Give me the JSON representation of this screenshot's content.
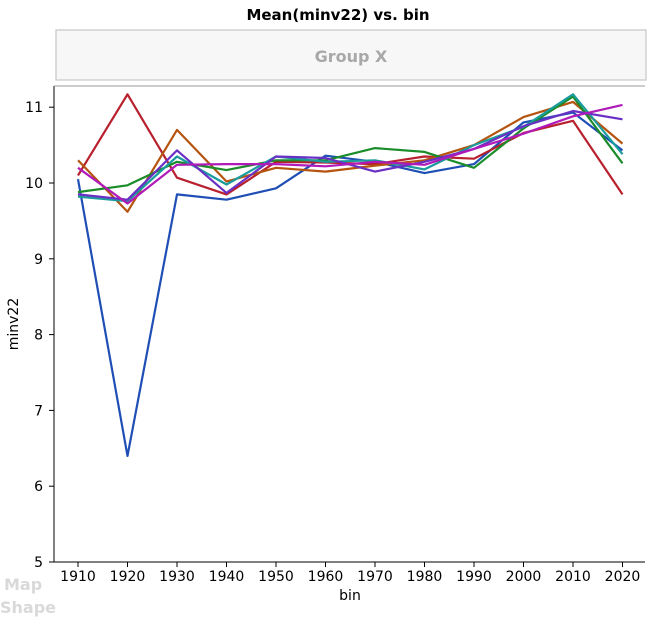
{
  "chart_data": {
    "type": "line",
    "title": "Mean(minv22) vs. bin",
    "group_label": "Group X",
    "xlabel": "bin",
    "ylabel": "minv22",
    "x": [
      1910,
      1920,
      1930,
      1940,
      1950,
      1960,
      1970,
      1980,
      1990,
      2000,
      2010,
      2020
    ],
    "ylim": [
      5,
      11.3
    ],
    "yticks": [
      5,
      6,
      7,
      8,
      9,
      10,
      11
    ],
    "grid": false,
    "legend": "none",
    "series": [
      {
        "color": "#1f4fb5",
        "values": [
          10.05,
          6.4,
          9.85,
          9.78,
          9.93,
          10.36,
          10.28,
          10.13,
          10.25,
          10.8,
          10.93,
          10.43
        ]
      },
      {
        "color": "#b8202e",
        "values": [
          10.1,
          11.17,
          10.07,
          9.85,
          10.28,
          10.27,
          10.25,
          10.35,
          10.32,
          10.66,
          10.82,
          9.85
        ]
      },
      {
        "color": "#b5540f",
        "values": [
          10.3,
          9.62,
          10.7,
          10.02,
          10.2,
          10.15,
          10.23,
          10.3,
          10.5,
          10.87,
          11.07,
          10.52
        ]
      },
      {
        "color": "#1a8c2a",
        "values": [
          9.88,
          9.97,
          10.28,
          10.17,
          10.3,
          10.3,
          10.46,
          10.41,
          10.2,
          10.72,
          11.14,
          10.26
        ]
      },
      {
        "color": "#1b9c9c",
        "values": [
          9.82,
          9.76,
          10.35,
          9.98,
          10.35,
          10.28,
          10.3,
          10.18,
          10.5,
          10.74,
          11.17,
          10.38
        ]
      },
      {
        "color": "#6a2fc4",
        "values": [
          9.85,
          9.78,
          10.43,
          9.87,
          10.35,
          10.33,
          10.15,
          10.28,
          10.45,
          10.75,
          10.95,
          10.84
        ]
      },
      {
        "color": "#b01ab8",
        "values": [
          10.2,
          9.73,
          10.24,
          10.25,
          10.25,
          10.22,
          10.28,
          10.24,
          10.45,
          10.65,
          10.88,
          11.03
        ]
      }
    ],
    "ghost_labels": [
      "Map",
      "Shape"
    ]
  }
}
